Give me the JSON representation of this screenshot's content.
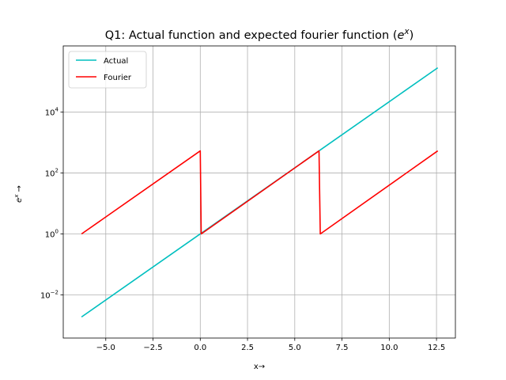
{
  "chart_data": {
    "type": "line",
    "title": "Q1: Actual function and expected fourier function (e^x)",
    "title_parts": {
      "prefix": "Q1: Actual function and expected fourier function (",
      "base": "e",
      "sup": "x",
      "suffix": ")"
    },
    "xlabel": "x→",
    "ylabel_parts": {
      "base": "e",
      "sup": "x",
      "suffix": " →"
    },
    "xlim": [
      -7.25,
      13.5
    ],
    "ylim": [
      0.00038,
      1500000
    ],
    "yscale": "log",
    "grid": true,
    "legend_position": "upper-left",
    "x_ticks": [
      {
        "value": -5,
        "label": "−5.0"
      },
      {
        "value": -2.5,
        "label": "−2.5"
      },
      {
        "value": 0,
        "label": "0.0"
      },
      {
        "value": 2.5,
        "label": "2.5"
      },
      {
        "value": 5,
        "label": "5.0"
      },
      {
        "value": 7.5,
        "label": "7.5"
      },
      {
        "value": 10,
        "label": "10.0"
      },
      {
        "value": 12.5,
        "label": "12.5"
      }
    ],
    "y_ticks": [
      {
        "value": 0.01,
        "base": "10",
        "exp": "−2"
      },
      {
        "value": 1,
        "base": "10",
        "exp": "0"
      },
      {
        "value": 100,
        "base": "10",
        "exp": "2"
      },
      {
        "value": 10000,
        "base": "10",
        "exp": "4"
      }
    ],
    "series": [
      {
        "name": "Actual",
        "color": "#00bfbf",
        "x": [
          -6.283,
          12.566
        ],
        "y": [
          0.00187,
          286751
        ]
      },
      {
        "name": "Fourier",
        "color": "#ff0000",
        "x": [
          -6.283,
          0.0,
          0.05,
          6.283,
          6.35,
          12.566
        ],
        "y": [
          1.0,
          535.5,
          1.0,
          535.5,
          1.0,
          535.5
        ]
      }
    ]
  }
}
